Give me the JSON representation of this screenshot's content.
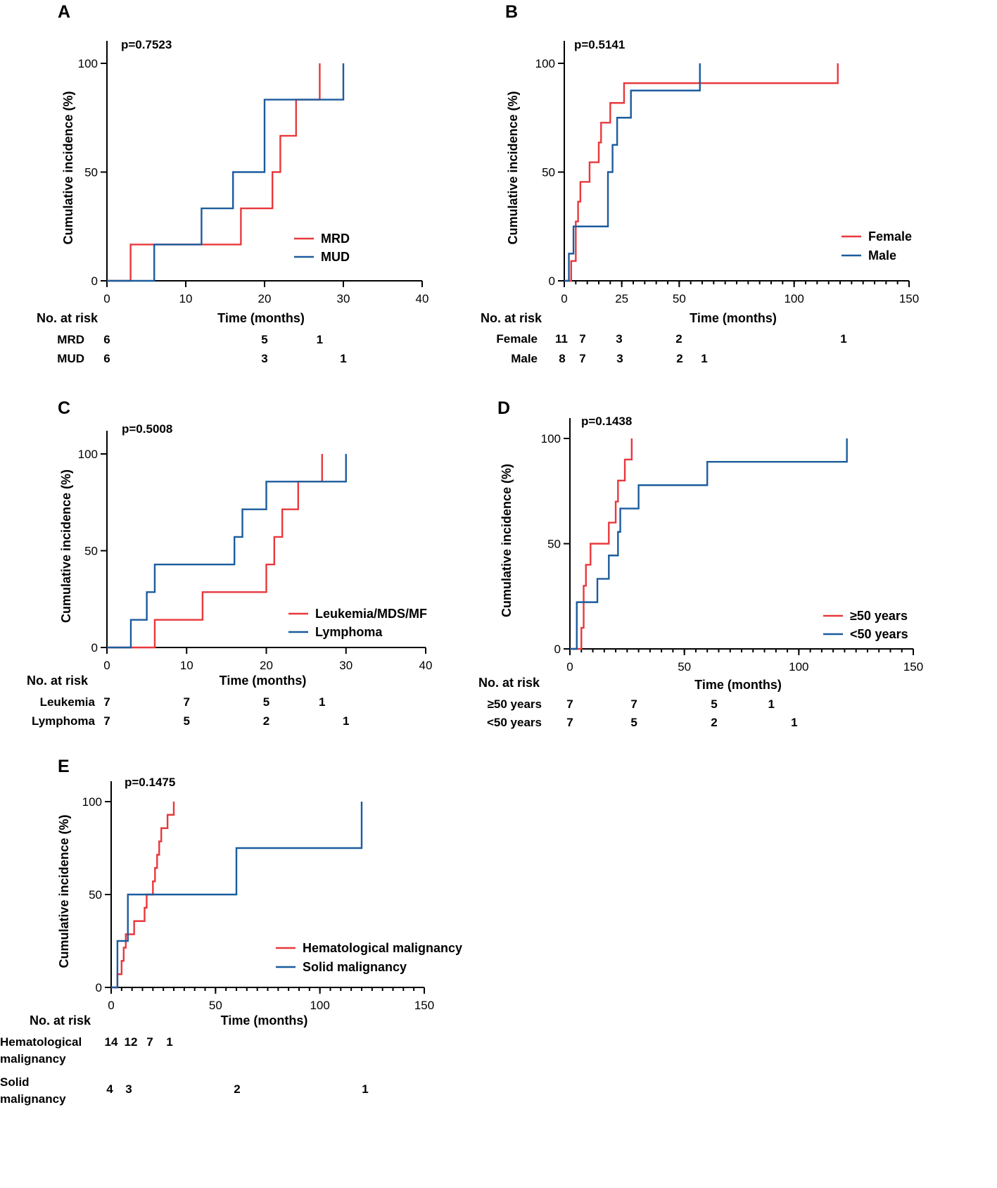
{
  "chart_data": [
    {
      "type": "line",
      "panel": "A",
      "p_value": "p=0.7523",
      "xlabel": "Time (months)",
      "ylabel": "Cumulative incidence (%)",
      "xlim": [
        0,
        40
      ],
      "ylim": [
        0,
        100
      ],
      "x_ticks": [
        0,
        10,
        20,
        30,
        40
      ],
      "y_ticks": [
        0,
        50,
        100
      ],
      "legend_position": "right",
      "series": [
        {
          "name": "MRD",
          "color": "#e8383d",
          "steps": [
            [
              0,
              0
            ],
            [
              3,
              16.7
            ],
            [
              17,
              33.3
            ],
            [
              21,
              50
            ],
            [
              22,
              66.7
            ],
            [
              24,
              83.3
            ],
            [
              27,
              83.3
            ]
          ],
          "final_jump": [
            27,
            100
          ]
        },
        {
          "name": "MUD",
          "color": "#1b5c9e",
          "steps": [
            [
              0,
              0
            ],
            [
              6,
              16.7
            ],
            [
              12,
              33.3
            ],
            [
              16,
              50
            ],
            [
              20,
              83.3
            ],
            [
              30,
              83.3
            ]
          ],
          "final_jump": [
            30,
            100
          ]
        }
      ],
      "risk_table": {
        "title": "No. at risk",
        "rows": [
          {
            "label": "MRD",
            "cells": [
              {
                "t": 0,
                "n": "6"
              },
              {
                "t": 20,
                "n": "5"
              },
              {
                "t": 27,
                "n": "1"
              }
            ]
          },
          {
            "label": "MUD",
            "cells": [
              {
                "t": 0,
                "n": "6"
              },
              {
                "t": 20,
                "n": "3"
              },
              {
                "t": 30,
                "n": "1"
              }
            ]
          }
        ]
      }
    },
    {
      "type": "line",
      "panel": "B",
      "p_value": "p=0.5141",
      "xlabel": "Time (months)",
      "ylabel": "Cumulative incidence (%)",
      "xlim": [
        0,
        150
      ],
      "ylim": [
        0,
        100
      ],
      "x_ticks": [
        0,
        25,
        50,
        100,
        150
      ],
      "y_ticks": [
        0,
        50,
        100
      ],
      "legend_position": "right",
      "series": [
        {
          "name": "Female",
          "color": "#e8383d",
          "steps": [
            [
              0,
              0
            ],
            [
              3,
              9.1
            ],
            [
              5,
              27.3
            ],
            [
              6,
              36.4
            ],
            [
              7,
              45.5
            ],
            [
              11,
              54.5
            ],
            [
              15,
              63.6
            ],
            [
              16,
              72.7
            ],
            [
              20,
              81.8
            ],
            [
              26,
              90.9
            ],
            [
              119,
              90.9
            ]
          ],
          "final_jump": [
            119,
            100
          ]
        },
        {
          "name": "Male",
          "color": "#1b5c9e",
          "steps": [
            [
              0,
              0
            ],
            [
              2,
              12.5
            ],
            [
              4,
              25
            ],
            [
              19,
              50
            ],
            [
              21,
              62.5
            ],
            [
              23,
              75
            ],
            [
              29,
              87.5
            ],
            [
              59,
              87.5
            ]
          ],
          "final_jump": [
            59,
            100
          ]
        }
      ],
      "risk_table": {
        "title": "No. at risk",
        "rows": [
          {
            "label": "Female",
            "cells": [
              {
                "t": 0,
                "n": "11"
              },
              {
                "t": 9,
                "n": "7"
              },
              {
                "t": 25,
                "n": "3"
              },
              {
                "t": 50,
                "n": "2"
              },
              {
                "t": 120,
                "n": "1"
              }
            ]
          },
          {
            "label": "Male",
            "cells": [
              {
                "t": 0,
                "n": "8"
              },
              {
                "t": 9,
                "n": "7"
              },
              {
                "t": 25,
                "n": "3"
              },
              {
                "t": 50,
                "n": "2"
              },
              {
                "t": 61,
                "n": "1"
              }
            ]
          }
        ]
      }
    },
    {
      "type": "line",
      "panel": "C",
      "p_value": "p=0.5008",
      "xlabel": "Time (months)",
      "ylabel": "Cumulative incidence (%)",
      "xlim": [
        0,
        40
      ],
      "ylim": [
        0,
        100
      ],
      "x_ticks": [
        0,
        10,
        20,
        30,
        40
      ],
      "y_ticks": [
        0,
        50,
        100
      ],
      "legend_position": "right",
      "series": [
        {
          "name": "Leukemia/MDS/MF",
          "color": "#e8383d",
          "steps": [
            [
              0,
              0
            ],
            [
              6,
              14.3
            ],
            [
              12,
              28.6
            ],
            [
              20,
              42.9
            ],
            [
              21,
              57.1
            ],
            [
              22,
              71.4
            ],
            [
              24,
              85.7
            ],
            [
              27,
              85.7
            ]
          ],
          "final_jump": [
            27,
            100
          ]
        },
        {
          "name": "Lymphoma",
          "color": "#1b5c9e",
          "steps": [
            [
              0,
              0
            ],
            [
              3,
              14.3
            ],
            [
              5,
              28.6
            ],
            [
              6,
              42.9
            ],
            [
              16,
              57.1
            ],
            [
              17,
              71.4
            ],
            [
              20,
              85.7
            ],
            [
              30,
              85.7
            ]
          ],
          "final_jump": [
            30,
            100
          ]
        }
      ],
      "risk_table": {
        "title": "No. at risk",
        "rows": [
          {
            "label": "Leukemia",
            "cells": [
              {
                "t": 0,
                "n": "7"
              },
              {
                "t": 10,
                "n": "7"
              },
              {
                "t": 20,
                "n": "5"
              },
              {
                "t": 27,
                "n": "1"
              }
            ]
          },
          {
            "label": "Lymphoma",
            "cells": [
              {
                "t": 0,
                "n": "7"
              },
              {
                "t": 10,
                "n": "5"
              },
              {
                "t": 20,
                "n": "2"
              },
              {
                "t": 30,
                "n": "1"
              }
            ]
          }
        ]
      }
    },
    {
      "type": "line",
      "panel": "D",
      "p_value": "p=0.1438",
      "xlabel": "Time (months)",
      "ylabel": "Cumulative incidence (%)",
      "xlim": [
        0,
        150
      ],
      "ylim": [
        0,
        100
      ],
      "x_ticks": [
        0,
        50,
        100,
        150
      ],
      "y_ticks": [
        0,
        50,
        100
      ],
      "legend_position": "right",
      "series": [
        {
          "name": "≥50 years",
          "color": "#e8383d",
          "steps": [
            [
              0,
              0
            ],
            [
              5,
              10
            ],
            [
              6,
              30
            ],
            [
              7,
              40
            ],
            [
              9,
              50
            ],
            [
              16,
              50
            ],
            [
              17,
              60
            ],
            [
              20,
              70
            ],
            [
              21,
              80
            ],
            [
              24,
              90
            ],
            [
              27,
              90
            ]
          ],
          "final_jump": [
            27,
            100
          ]
        },
        {
          "name": "<50 years",
          "color": "#1b5c9e",
          "steps": [
            [
              0,
              0
            ],
            [
              3,
              22.2
            ],
            [
              12,
              33.3
            ],
            [
              17,
              44.4
            ],
            [
              21,
              55.6
            ],
            [
              22,
              66.7
            ],
            [
              30,
              77.8
            ],
            [
              60,
              88.9
            ],
            [
              121,
              88.9
            ]
          ],
          "final_jump": [
            121,
            100
          ]
        }
      ],
      "risk_table": {
        "title": "No. at risk",
        "rows": [
          {
            "label": "≥50 years",
            "cells": [
              {
                "t": 0,
                "n": "7"
              },
              {
                "t": 28,
                "n": "7"
              },
              {
                "t": 63,
                "n": "5"
              },
              {
                "t": 88,
                "n": "1"
              }
            ]
          },
          {
            "label": "<50 years",
            "cells": [
              {
                "t": 0,
                "n": "7"
              },
              {
                "t": 28,
                "n": "5"
              },
              {
                "t": 63,
                "n": "2"
              },
              {
                "t": 98,
                "n": "1"
              }
            ]
          }
        ]
      }
    },
    {
      "type": "line",
      "panel": "E",
      "p_value": "p=0.1475",
      "xlabel": "Time (months)",
      "ylabel": "Cumulative incidence (%)",
      "xlim": [
        0,
        150
      ],
      "ylim": [
        0,
        100
      ],
      "x_ticks": [
        0,
        50,
        100,
        150
      ],
      "y_ticks": [
        0,
        50,
        100
      ],
      "legend_position": "right",
      "series": [
        {
          "name": "Hematological malignancy",
          "color": "#e8383d",
          "steps": [
            [
              0,
              0
            ],
            [
              3,
              7.1
            ],
            [
              5,
              14.3
            ],
            [
              6,
              21.4
            ],
            [
              7,
              28.6
            ],
            [
              11,
              35.7
            ],
            [
              16,
              42.9
            ],
            [
              17,
              50
            ],
            [
              20,
              57.1
            ],
            [
              21,
              64.3
            ],
            [
              22,
              71.4
            ],
            [
              23,
              78.6
            ],
            [
              24,
              85.7
            ],
            [
              27,
              92.9
            ],
            [
              30,
              92.9
            ]
          ],
          "final_jump": [
            30,
            100
          ]
        },
        {
          "name": "Solid malignancy",
          "color": "#1b5c9e",
          "steps": [
            [
              0,
              0
            ],
            [
              3,
              25
            ],
            [
              8,
              50
            ],
            [
              60,
              75
            ],
            [
              120,
              75
            ]
          ],
          "final_jump": [
            120,
            100
          ]
        }
      ],
      "risk_table": {
        "title": "No. at risk",
        "rows": [
          {
            "label": [
              "Hematological",
              "malignancy"
            ],
            "cells": [
              {
                "t": 0,
                "n": "14"
              },
              {
                "t": 10,
                "n": "12"
              },
              {
                "t": 20,
                "n": "7"
              },
              {
                "t": 30,
                "n": "1"
              }
            ]
          },
          {
            "label": [
              "Solid",
              "malignancy"
            ],
            "cells": [
              {
                "t": 0,
                "n": "4"
              },
              {
                "t": 10,
                "n": "3"
              },
              {
                "t": 60,
                "n": "2"
              },
              {
                "t": 120,
                "n": "1"
              }
            ]
          }
        ]
      }
    }
  ]
}
